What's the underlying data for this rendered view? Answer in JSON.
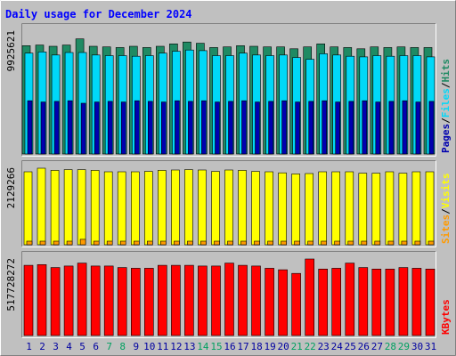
{
  "chart_data": {
    "type": "bar",
    "title": "Daily usage for December 2024",
    "days": [
      "1",
      "2",
      "3",
      "4",
      "5",
      "6",
      "7",
      "8",
      "9",
      "10",
      "11",
      "12",
      "13",
      "14",
      "15",
      "16",
      "17",
      "18",
      "19",
      "20",
      "21",
      "22",
      "23",
      "24",
      "25",
      "26",
      "27",
      "28",
      "29",
      "30",
      "31"
    ],
    "weekend_days": [
      "7",
      "8",
      "14",
      "15",
      "21",
      "22",
      "28",
      "29"
    ],
    "panels": [
      {
        "id": "hits-files-pages",
        "axis_max_label": "9925621",
        "ylim": [
          0,
          9925621
        ],
        "legend": [
          "Pages",
          "Files",
          "Hits"
        ],
        "series": [
          {
            "name": "Hits",
            "color": "#1f8a63",
            "values": [
              8750000,
              8800000,
              8700000,
              8800000,
              9300000,
              8700000,
              8650000,
              8600000,
              8700000,
              8600000,
              8700000,
              8900000,
              9050000,
              8950000,
              8600000,
              8650000,
              8750000,
              8700000,
              8650000,
              8650000,
              8500000,
              8650000,
              8900000,
              8650000,
              8600000,
              8500000,
              8650000,
              8600000,
              8650000,
              8600000,
              8600000
            ]
          },
          {
            "name": "Files",
            "color": "#00d8f8",
            "values": [
              8150000,
              8250000,
              8000000,
              8200000,
              8200000,
              8000000,
              7950000,
              7950000,
              7900000,
              7950000,
              8150000,
              8300000,
              8400000,
              8350000,
              7950000,
              7950000,
              8150000,
              8000000,
              7950000,
              8000000,
              7800000,
              7650000,
              8100000,
              8000000,
              7900000,
              7850000,
              7950000,
              7900000,
              7950000,
              7950000,
              7850000
            ]
          },
          {
            "name": "Pages",
            "color": "#0000b0",
            "values": [
              4300000,
              4200000,
              4250000,
              4300000,
              4100000,
              4200000,
              4250000,
              4200000,
              4300000,
              4250000,
              4200000,
              4300000,
              4250000,
              4300000,
              4200000,
              4250000,
              4300000,
              4200000,
              4250000,
              4300000,
              4200000,
              4250000,
              4300000,
              4200000,
              4250000,
              4300000,
              4200000,
              4250000,
              4300000,
              4200000,
              4250000
            ]
          }
        ]
      },
      {
        "id": "visits-sites",
        "axis_max_label": "2129266",
        "ylim": [
          0,
          2129266
        ],
        "legend": [
          "Sites",
          "Visits"
        ],
        "series": [
          {
            "name": "Visits",
            "color": "#ffff00",
            "values": [
              2030000,
              2129266,
              2070000,
              2090000,
              2090000,
              2070000,
              2030000,
              2030000,
              2030000,
              2040000,
              2070000,
              2080000,
              2090000,
              2080000,
              2040000,
              2080000,
              2070000,
              2040000,
              2030000,
              2000000,
              1970000,
              1980000,
              2030000,
              2030000,
              2030000,
              1990000,
              1990000,
              2030000,
              1990000,
              2030000,
              2030000
            ]
          },
          {
            "name": "Sites",
            "color": "#ff9a00",
            "values": [
              100000,
              100000,
              100000,
              100000,
              150000,
              100000,
              100000,
              100000,
              100000,
              100000,
              100000,
              100000,
              100000,
              100000,
              100000,
              100000,
              100000,
              100000,
              100000,
              100000,
              100000,
              100000,
              100000,
              100000,
              100000,
              100000,
              100000,
              100000,
              100000,
              100000,
              100000
            ]
          }
        ]
      },
      {
        "id": "kbytes",
        "axis_max_label": "517728272",
        "ylim": [
          0,
          517728272
        ],
        "legend": [
          "KBytes"
        ],
        "series": [
          {
            "name": "KBytes",
            "color": "#ff0000",
            "values": [
              475000000,
              480000000,
              460000000,
              470000000,
              490000000,
              470000000,
              470000000,
              460000000,
              455000000,
              455000000,
              475000000,
              475000000,
              475000000,
              470000000,
              470000000,
              490000000,
              475000000,
              470000000,
              455000000,
              445000000,
              420000000,
              517728272,
              450000000,
              455000000,
              490000000,
              460000000,
              450000000,
              450000000,
              460000000,
              455000000,
              450000000
            ]
          }
        ]
      }
    ]
  },
  "colors": {
    "background": "#c0c0c0",
    "plot_background": "#c0c0c0",
    "title_color": "#0000ff",
    "weekday_label": "#0000a0",
    "weekend_label": "#00a060",
    "bar_outline": "#000000",
    "legend_slash": "#000000"
  }
}
